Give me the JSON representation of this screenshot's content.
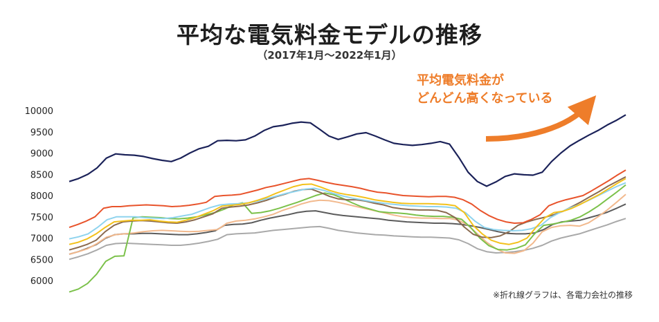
{
  "title": "平均な電気料金モデルの推移",
  "subtitle": "（2017年1月〜2022年1月）",
  "annotation": [
    "平均電気料金が",
    "どんどん高くなっている"
  ],
  "annotation_color": "#ee7d2a",
  "footnote": "※折れ線グラフは、各電力会社の推移",
  "chart_data": {
    "type": "line",
    "title": "平均な電気料金モデルの推移",
    "xlabel": "",
    "ylabel": "",
    "x_range": [
      "2017年1月",
      "2022年1月"
    ],
    "ylim": [
      5750,
      10000
    ],
    "y_ticks": [
      6000,
      6500,
      7000,
      7500,
      8000,
      8500,
      9000,
      9500,
      10000
    ],
    "grid": false,
    "series": [
      {
        "name": "navy",
        "color": "#1b2259",
        "values": [
          8330,
          8400,
          8500,
          8650,
          8880,
          8980,
          8960,
          8950,
          8920,
          8870,
          8830,
          8800,
          8880,
          9000,
          9100,
          9160,
          9290,
          9300,
          9290,
          9310,
          9400,
          9530,
          9620,
          9650,
          9700,
          9730,
          9710,
          9560,
          9400,
          9320,
          9380,
          9450,
          9480,
          9400,
          9310,
          9230,
          9200,
          9180,
          9200,
          9230,
          9270,
          9210,
          8900,
          8550,
          8330,
          8220,
          8320,
          8450,
          8510,
          8490,
          8480,
          8550,
          8800,
          9000,
          9170,
          9300,
          9420,
          9530,
          9660,
          9770,
          9900
        ]
      },
      {
        "name": "red",
        "color": "#e8532b",
        "values": [
          7250,
          7320,
          7400,
          7500,
          7700,
          7740,
          7740,
          7760,
          7770,
          7780,
          7770,
          7760,
          7740,
          7750,
          7770,
          7800,
          7840,
          7980,
          8000,
          8010,
          8030,
          8080,
          8130,
          8190,
          8230,
          8280,
          8330,
          8380,
          8400,
          8360,
          8310,
          8270,
          8240,
          8210,
          8170,
          8120,
          8080,
          8060,
          8030,
          8000,
          7990,
          7980,
          7970,
          7980,
          7980,
          7960,
          7900,
          7800,
          7650,
          7530,
          7440,
          7380,
          7350,
          7360,
          7440,
          7550,
          7760,
          7840,
          7900,
          7950,
          8000,
          8110,
          8230,
          8350,
          8480,
          8600
        ]
      },
      {
        "name": "yellow",
        "color": "#f3c11b",
        "values": [
          6850,
          6900,
          6980,
          7100,
          7250,
          7380,
          7400,
          7420,
          7420,
          7430,
          7400,
          7380,
          7370,
          7420,
          7480,
          7560,
          7640,
          7750,
          7770,
          7790,
          7830,
          7890,
          7960,
          8050,
          8130,
          8210,
          8260,
          8270,
          8200,
          8120,
          8060,
          8020,
          7990,
          7950,
          7900,
          7870,
          7840,
          7820,
          7810,
          7810,
          7810,
          7800,
          7790,
          7760,
          7600,
          7300,
          7100,
          6950,
          6880,
          6850,
          6900,
          7000,
          7250,
          7480,
          7600,
          7630,
          7700,
          7800,
          7910,
          8020,
          8150,
          8280,
          8400
        ]
      },
      {
        "name": "cyan",
        "color": "#8ed3ee",
        "values": [
          6980,
          7030,
          7100,
          7250,
          7430,
          7500,
          7500,
          7500,
          7480,
          7470,
          7460,
          7480,
          7520,
          7560,
          7640,
          7720,
          7780,
          7800,
          7810,
          7830,
          7870,
          7930,
          7990,
          8050,
          8100,
          8150,
          8170,
          8120,
          8050,
          7990,
          7940,
          7900,
          7860,
          7830,
          7800,
          7780,
          7760,
          7750,
          7740,
          7740,
          7730,
          7700,
          7600,
          7400,
          7250,
          7200,
          7180,
          7170,
          7180,
          7220,
          7300,
          7480,
          7600,
          7700,
          7780,
          7880,
          7990,
          8100,
          8210,
          8300
        ]
      },
      {
        "name": "brown",
        "color": "#8a6a4f",
        "values": [
          6720,
          6780,
          6850,
          6950,
          7150,
          7300,
          7380,
          7400,
          7410,
          7400,
          7380,
          7360,
          7350,
          7380,
          7430,
          7500,
          7570,
          7700,
          7730,
          7750,
          7780,
          7830,
          7890,
          7970,
          8030,
          8100,
          8140,
          8150,
          8070,
          7980,
          7920,
          7900,
          7900,
          7870,
          7820,
          7780,
          7720,
          7690,
          7670,
          7660,
          7660,
          7650,
          7600,
          7480,
          7260,
          7090,
          7020,
          7010,
          7050,
          7150,
          7300,
          7380,
          7440,
          7490,
          7550,
          7630,
          7740,
          7850,
          7970,
          8090,
          8220,
          8330,
          8440
        ]
      },
      {
        "name": "green",
        "color": "#7bc14a",
        "values": [
          5730,
          5800,
          5930,
          6150,
          6450,
          6570,
          6580,
          7480,
          7500,
          7490,
          7480,
          7460,
          7450,
          7470,
          7500,
          7550,
          7600,
          7680,
          7780,
          7830,
          7580,
          7600,
          7640,
          7700,
          7770,
          7840,
          7920,
          8000,
          8060,
          8020,
          7930,
          7830,
          7740,
          7680,
          7620,
          7600,
          7590,
          7570,
          7540,
          7520,
          7510,
          7510,
          7490,
          7440,
          7250,
          7000,
          6820,
          6730,
          6720,
          6760,
          6840,
          7100,
          7300,
          7330,
          7370,
          7420,
          7500,
          7620,
          7760,
          7920,
          8080,
          8250
        ]
      },
      {
        "name": "peach",
        "color": "#f2b98d",
        "values": [
          6620,
          6680,
          6750,
          6870,
          7020,
          7080,
          7100,
          7120,
          7150,
          7170,
          7180,
          7170,
          7160,
          7150,
          7160,
          7180,
          7200,
          7350,
          7400,
          7420,
          7450,
          7500,
          7560,
          7650,
          7720,
          7800,
          7860,
          7890,
          7880,
          7840,
          7790,
          7740,
          7690,
          7640,
          7590,
          7540,
          7500,
          7480,
          7470,
          7470,
          7460,
          7460,
          7420,
          7300,
          7100,
          6900,
          6750,
          6650,
          6640,
          6700,
          6880,
          7150,
          7250,
          7290,
          7300,
          7280,
          7360,
          7500,
          7660,
          7840,
          8030
        ]
      },
      {
        "name": "darkgray",
        "color": "#5b5b5b",
        "values": [
          6620,
          6680,
          6760,
          6850,
          7000,
          7080,
          7100,
          7100,
          7110,
          7110,
          7100,
          7090,
          7080,
          7080,
          7100,
          7130,
          7170,
          7300,
          7320,
          7330,
          7360,
          7420,
          7470,
          7510,
          7550,
          7600,
          7630,
          7640,
          7600,
          7560,
          7530,
          7510,
          7490,
          7470,
          7450,
          7420,
          7400,
          7380,
          7370,
          7360,
          7350,
          7350,
          7340,
          7320,
          7290,
          7250,
          7200,
          7150,
          7110,
          7100,
          7100,
          7120,
          7200,
          7320,
          7380,
          7400,
          7420,
          7480,
          7540,
          7610,
          7700,
          7800
        ]
      },
      {
        "name": "lightgray",
        "color": "#a9a9a9",
        "values": [
          6500,
          6560,
          6630,
          6720,
          6830,
          6870,
          6880,
          6870,
          6860,
          6850,
          6840,
          6830,
          6830,
          6850,
          6880,
          6920,
          6970,
          7080,
          7100,
          7110,
          7120,
          7150,
          7180,
          7200,
          7220,
          7240,
          7260,
          7270,
          7230,
          7180,
          7150,
          7120,
          7100,
          7080,
          7070,
          7050,
          7040,
          7030,
          7020,
          7020,
          7010,
          7000,
          6960,
          6870,
          6750,
          6680,
          6650,
          6660,
          6680,
          6710,
          6760,
          6830,
          6930,
          7000,
          7050,
          7100,
          7170,
          7240,
          7310,
          7390,
          7460
        ]
      }
    ]
  }
}
